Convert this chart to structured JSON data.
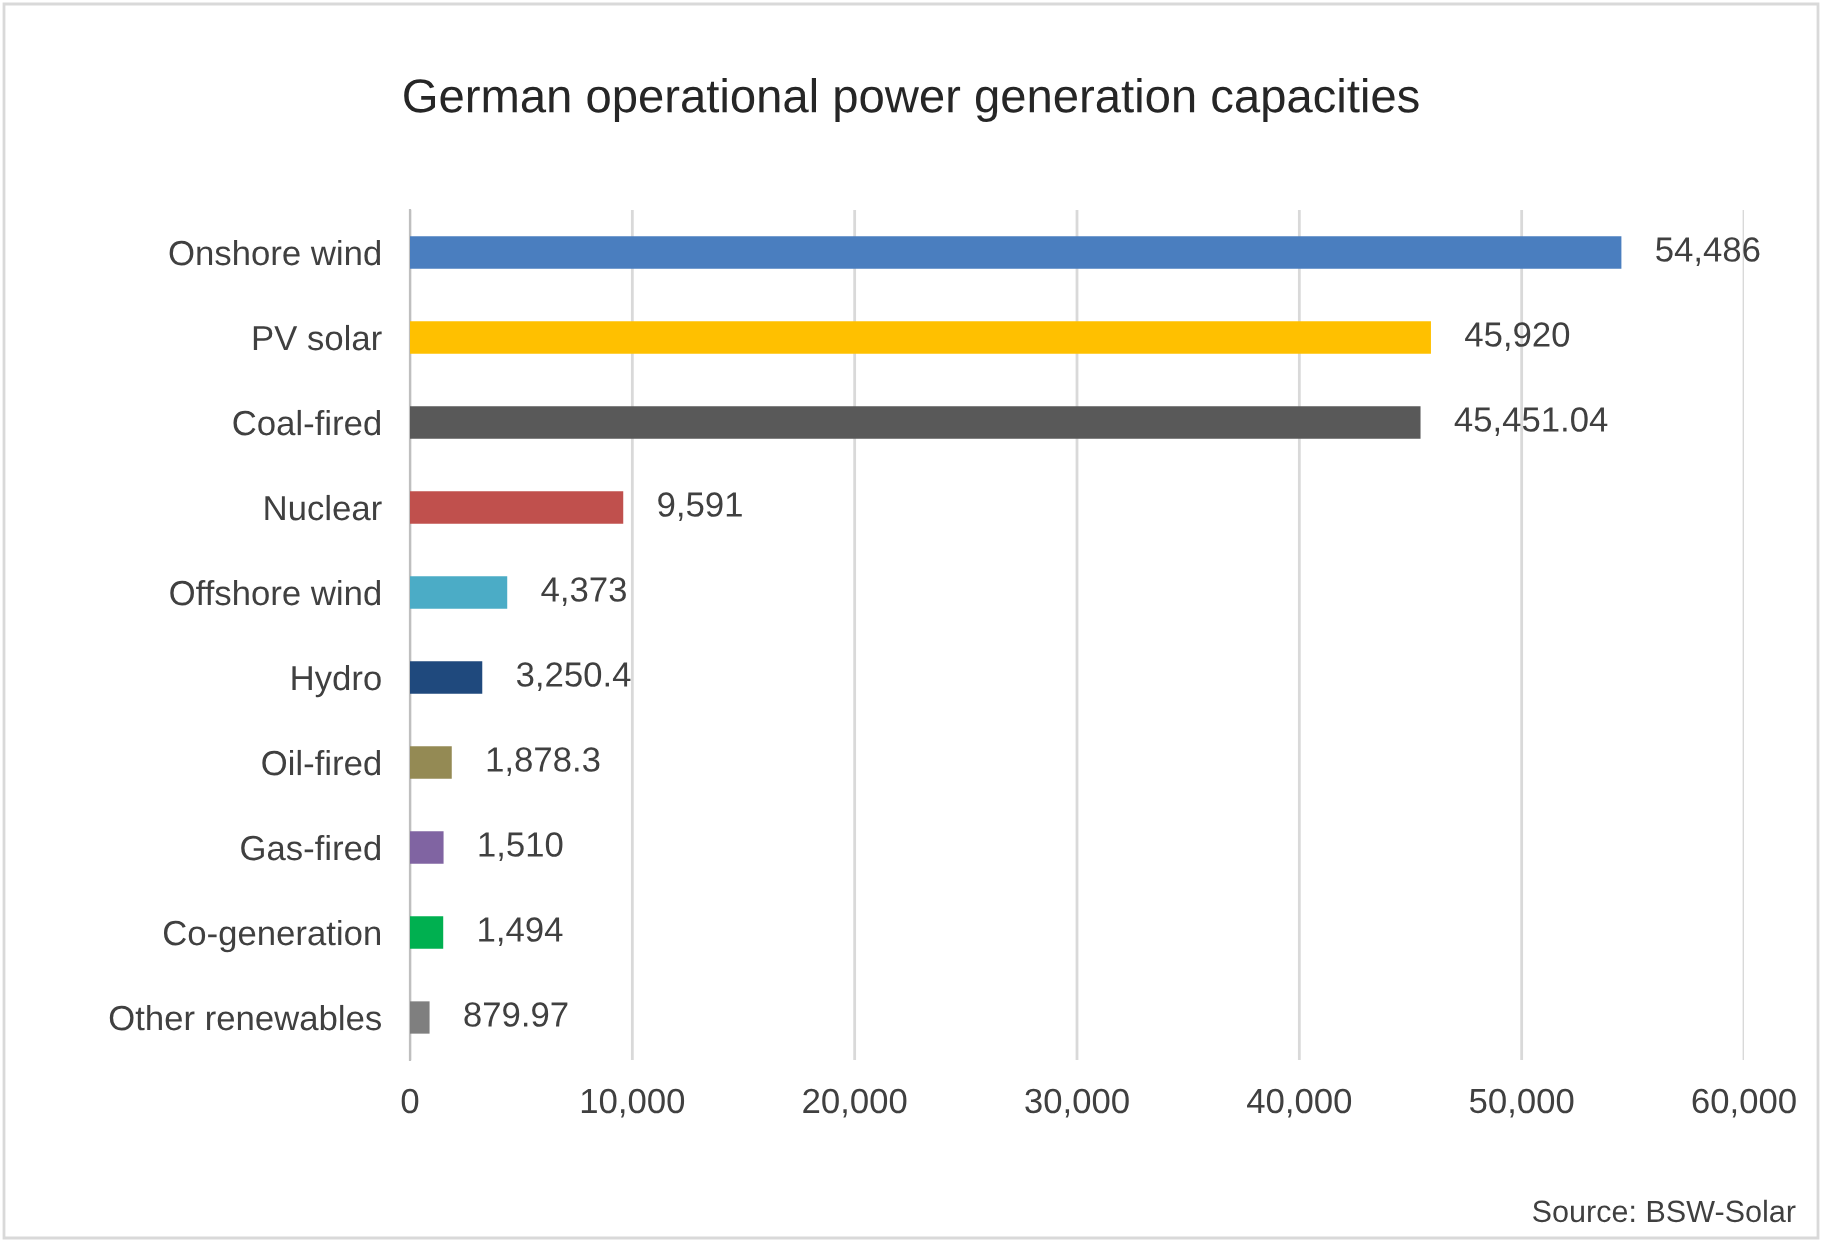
{
  "chart_data": {
    "type": "bar",
    "orientation": "horizontal",
    "title": "German operational power generation capacities",
    "categories": [
      "Onshore wind",
      "PV solar",
      "Coal-fired",
      "Nuclear",
      "Offshore wind",
      "Hydro",
      "Oil-fired",
      "Gas-fired",
      "Co-generation",
      "Other renewables"
    ],
    "values": [
      54486,
      45920,
      45451.04,
      9591,
      4373,
      3250.4,
      1878.3,
      1510,
      1494,
      879.97
    ],
    "colors": [
      "#4a7ebf",
      "#ffc000",
      "#595959",
      "#c0504d",
      "#4bacc6",
      "#1f497d",
      "#948a54",
      "#8064a2",
      "#00b050",
      "#7f7f7f"
    ],
    "value_labels": [
      "54,486",
      "45,920",
      "45,451.04",
      "9,591",
      "4,373",
      "3,250.4",
      "1,878.3",
      "1,510",
      "1,494",
      "879.97"
    ],
    "xlim": [
      0,
      60000
    ],
    "xticks": [
      {
        "value": 0,
        "label": "0"
      },
      {
        "value": 10000,
        "label": "10,000"
      },
      {
        "value": 20000,
        "label": "20,000"
      },
      {
        "value": 30000,
        "label": "30,000"
      },
      {
        "value": 40000,
        "label": "40,000"
      },
      {
        "value": 50000,
        "label": "50,000"
      },
      {
        "value": 60000,
        "label": "60,000"
      }
    ],
    "grid": "x",
    "legend": false,
    "annotations": [
      "Source: BSW-Solar"
    ]
  }
}
